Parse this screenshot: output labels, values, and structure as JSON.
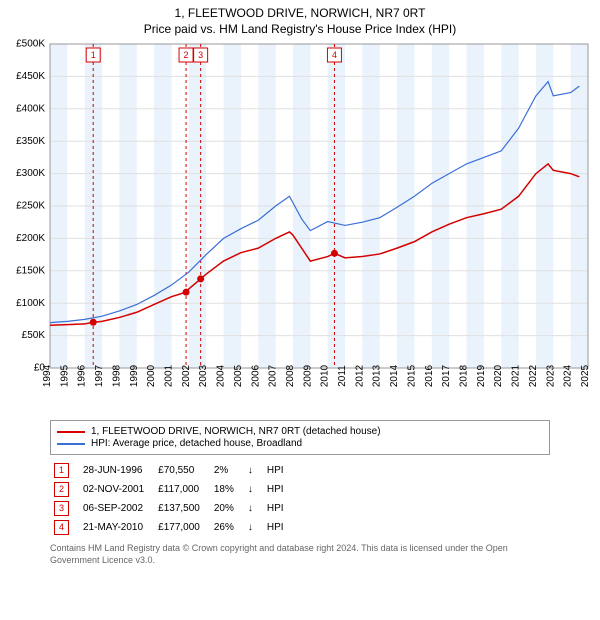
{
  "title_line1": "1, FLEETWOOD DRIVE, NORWICH, NR7 0RT",
  "title_line2": "Price paid vs. HM Land Registry's House Price Index (HPI)",
  "chart": {
    "type": "line",
    "background_color": "#ffffff",
    "plot_bg": "#ffffff",
    "grid_color": "#e0e0e0",
    "band_color": "#eaf2fb",
    "xlim": [
      1994,
      2025
    ],
    "ylim": [
      0,
      500000
    ],
    "ytick_step": 50000,
    "yticks": [
      "£0",
      "£50K",
      "£100K",
      "£150K",
      "£200K",
      "£250K",
      "£300K",
      "£350K",
      "£400K",
      "£450K",
      "£500K"
    ],
    "xticks": [
      1994,
      1995,
      1996,
      1997,
      1998,
      1999,
      2000,
      2001,
      2002,
      2003,
      2004,
      2005,
      2006,
      2007,
      2008,
      2009,
      2010,
      2011,
      2012,
      2013,
      2014,
      2015,
      2016,
      2017,
      2018,
      2019,
      2020,
      2021,
      2022,
      2023,
      2024,
      2025
    ],
    "series": [
      {
        "name": "1, FLEETWOOD DRIVE, NORWICH, NR7 0RT (detached house)",
        "color": "#d40000",
        "line_width": 1.5,
        "points": [
          [
            1994.0,
            66000
          ],
          [
            1995.0,
            67000
          ],
          [
            1996.0,
            68000
          ],
          [
            1996.5,
            70550
          ],
          [
            1997.0,
            72000
          ],
          [
            1998.0,
            78000
          ],
          [
            1999.0,
            86000
          ],
          [
            2000.0,
            98000
          ],
          [
            2001.0,
            110000
          ],
          [
            2001.83,
            117000
          ],
          [
            2002.0,
            122000
          ],
          [
            2002.68,
            137500
          ],
          [
            2003.0,
            145000
          ],
          [
            2004.0,
            165000
          ],
          [
            2005.0,
            178000
          ],
          [
            2006.0,
            185000
          ],
          [
            2007.0,
            200000
          ],
          [
            2007.8,
            210000
          ],
          [
            2008.0,
            205000
          ],
          [
            2008.5,
            185000
          ],
          [
            2009.0,
            165000
          ],
          [
            2010.0,
            172000
          ],
          [
            2010.39,
            177000
          ],
          [
            2011.0,
            170000
          ],
          [
            2012.0,
            172000
          ],
          [
            2013.0,
            176000
          ],
          [
            2014.0,
            185000
          ],
          [
            2015.0,
            195000
          ],
          [
            2016.0,
            210000
          ],
          [
            2017.0,
            222000
          ],
          [
            2018.0,
            232000
          ],
          [
            2019.0,
            238000
          ],
          [
            2020.0,
            245000
          ],
          [
            2021.0,
            265000
          ],
          [
            2022.0,
            300000
          ],
          [
            2022.7,
            315000
          ],
          [
            2023.0,
            305000
          ],
          [
            2024.0,
            300000
          ],
          [
            2024.5,
            295000
          ]
        ]
      },
      {
        "name": "HPI: Average price, detached house, Broadland",
        "color": "#3a6fd8",
        "line_width": 1.2,
        "points": [
          [
            1994.0,
            70000
          ],
          [
            1995.0,
            72000
          ],
          [
            1996.0,
            75000
          ],
          [
            1997.0,
            80000
          ],
          [
            1998.0,
            88000
          ],
          [
            1999.0,
            98000
          ],
          [
            2000.0,
            112000
          ],
          [
            2001.0,
            128000
          ],
          [
            2002.0,
            148000
          ],
          [
            2003.0,
            175000
          ],
          [
            2004.0,
            200000
          ],
          [
            2005.0,
            215000
          ],
          [
            2006.0,
            228000
          ],
          [
            2007.0,
            250000
          ],
          [
            2007.8,
            265000
          ],
          [
            2008.0,
            255000
          ],
          [
            2008.5,
            230000
          ],
          [
            2009.0,
            212000
          ],
          [
            2010.0,
            226000
          ],
          [
            2011.0,
            220000
          ],
          [
            2012.0,
            225000
          ],
          [
            2013.0,
            232000
          ],
          [
            2014.0,
            248000
          ],
          [
            2015.0,
            265000
          ],
          [
            2016.0,
            285000
          ],
          [
            2017.0,
            300000
          ],
          [
            2018.0,
            315000
          ],
          [
            2019.0,
            325000
          ],
          [
            2020.0,
            335000
          ],
          [
            2021.0,
            370000
          ],
          [
            2022.0,
            420000
          ],
          [
            2022.7,
            442000
          ],
          [
            2023.0,
            420000
          ],
          [
            2024.0,
            425000
          ],
          [
            2024.5,
            435000
          ]
        ]
      }
    ],
    "sales": [
      {
        "n": "1",
        "year": 1996.49,
        "price": 70550
      },
      {
        "n": "2",
        "year": 2001.84,
        "price": 117000
      },
      {
        "n": "3",
        "year": 2002.68,
        "price": 137500
      },
      {
        "n": "4",
        "year": 2010.39,
        "price": 177000
      }
    ],
    "marker_border": "#d40000",
    "marker_fill": "#ffffff",
    "marker_dot": "#d40000",
    "marker_line_dash": "3,3",
    "label_fontsize": 10
  },
  "legend": {
    "items": [
      {
        "color": "#d40000",
        "label": "1, FLEETWOOD DRIVE, NORWICH, NR7 0RT (detached house)"
      },
      {
        "color": "#3a6fd8",
        "label": "HPI: Average price, detached house, Broadland"
      }
    ]
  },
  "table": {
    "marker_border": "#d40000",
    "rows": [
      {
        "n": "1",
        "date": "28-JUN-1996",
        "price": "£70,550",
        "pct": "2%",
        "dir": "↓",
        "hpi": "HPI"
      },
      {
        "n": "2",
        "date": "02-NOV-2001",
        "price": "£117,000",
        "pct": "18%",
        "dir": "↓",
        "hpi": "HPI"
      },
      {
        "n": "3",
        "date": "06-SEP-2002",
        "price": "£137,500",
        "pct": "20%",
        "dir": "↓",
        "hpi": "HPI"
      },
      {
        "n": "4",
        "date": "21-MAY-2010",
        "price": "£177,000",
        "pct": "26%",
        "dir": "↓",
        "hpi": "HPI"
      }
    ]
  },
  "footnote": "Contains HM Land Registry data © Crown copyright and database right 2024. This data is licensed under the Open Government Licence v3.0."
}
